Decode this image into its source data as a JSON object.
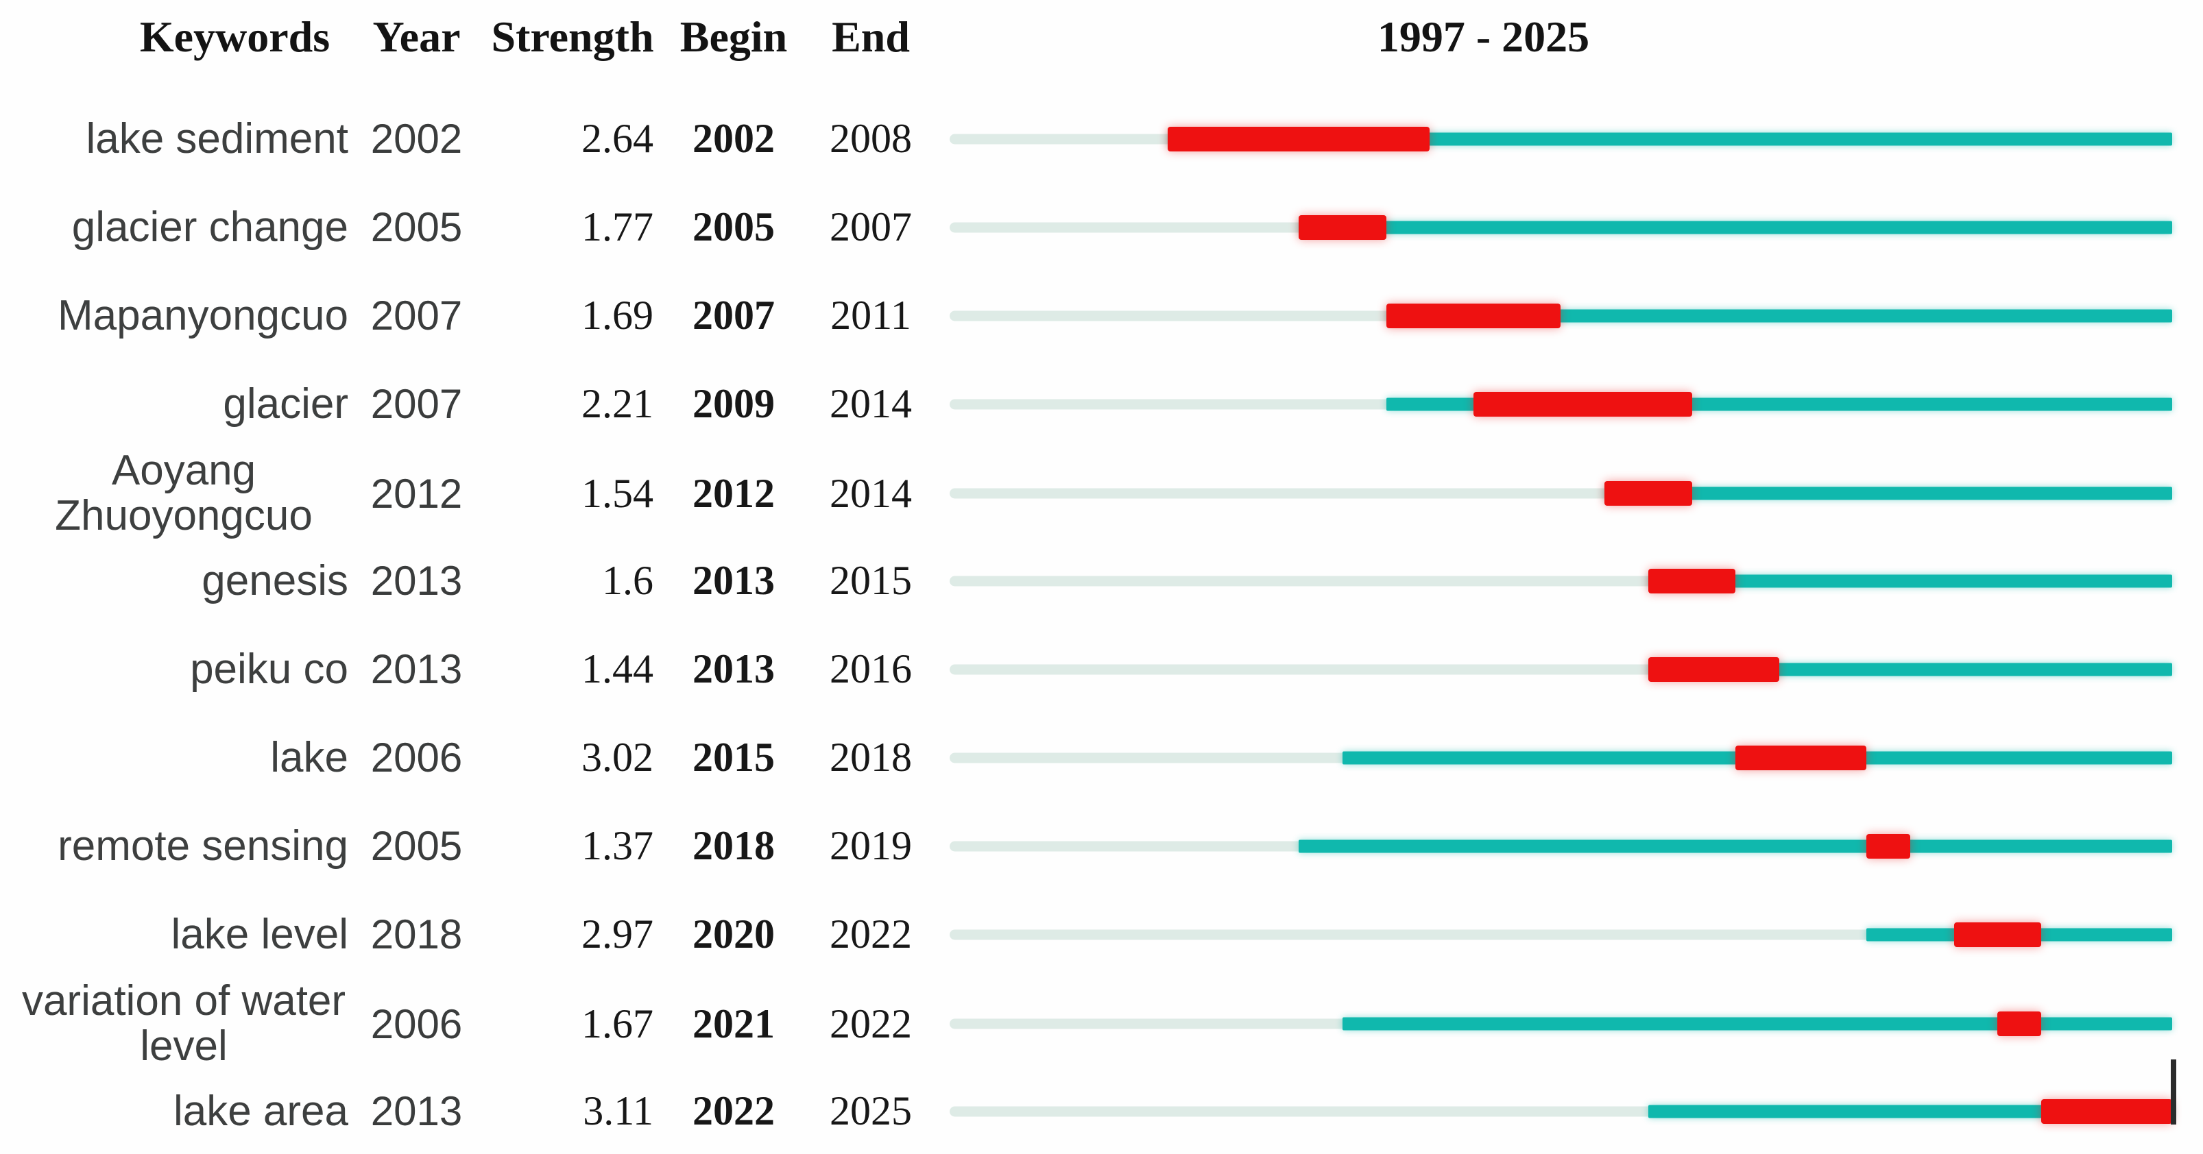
{
  "table": {
    "columns": [
      "Keywords",
      "Year",
      "Strength",
      "Begin",
      "End"
    ]
  },
  "colors": {
    "burst": "#ee1111",
    "active_period": "#10b8ad",
    "inactive_period": "#deebe6",
    "header_text": "#131313",
    "keyword_text": "#3d3f3f",
    "end_tick": "#2b2b2b"
  },
  "chart_data": {
    "type": "gantt",
    "title": "1997 - 2025",
    "columns": [
      "Keywords",
      "Year",
      "Strength",
      "Begin",
      "End"
    ],
    "x_range": [
      1997,
      2025
    ],
    "legend_position": "none",
    "grid": false,
    "rows": [
      {
        "keyword": "lake sediment",
        "year": 2002,
        "strength": "2.64",
        "begin": 2002,
        "end": 2008,
        "marker": false
      },
      {
        "keyword": "glacier change",
        "year": 2005,
        "strength": "1.77",
        "begin": 2005,
        "end": 2007,
        "marker": false
      },
      {
        "keyword": "Mapanyongcuo",
        "year": 2007,
        "strength": "1.69",
        "begin": 2007,
        "end": 2011,
        "marker": false
      },
      {
        "keyword": "glacier",
        "year": 2007,
        "strength": "2.21",
        "begin": 2009,
        "end": 2014,
        "marker": false
      },
      {
        "keyword": "Aoyang Zhuoyongcuo",
        "year": 2012,
        "strength": "1.54",
        "begin": 2012,
        "end": 2014,
        "marker": false
      },
      {
        "keyword": "genesis",
        "year": 2013,
        "strength": "1.6",
        "begin": 2013,
        "end": 2015,
        "marker": false
      },
      {
        "keyword": "peiku co",
        "year": 2013,
        "strength": "1.44",
        "begin": 2013,
        "end": 2016,
        "marker": false
      },
      {
        "keyword": "lake",
        "year": 2006,
        "strength": "3.02",
        "begin": 2015,
        "end": 2018,
        "marker": false
      },
      {
        "keyword": "remote sensing",
        "year": 2005,
        "strength": "1.37",
        "begin": 2018,
        "end": 2019,
        "marker": false
      },
      {
        "keyword": "lake level",
        "year": 2018,
        "strength": "2.97",
        "begin": 2020,
        "end": 2022,
        "marker": false
      },
      {
        "keyword": "variation of water level",
        "year": 2006,
        "strength": "1.67",
        "begin": 2021,
        "end": 2022,
        "marker": false
      },
      {
        "keyword": "lake area",
        "year": 2013,
        "strength": "3.11",
        "begin": 2022,
        "end": 2025,
        "marker": true
      }
    ]
  }
}
